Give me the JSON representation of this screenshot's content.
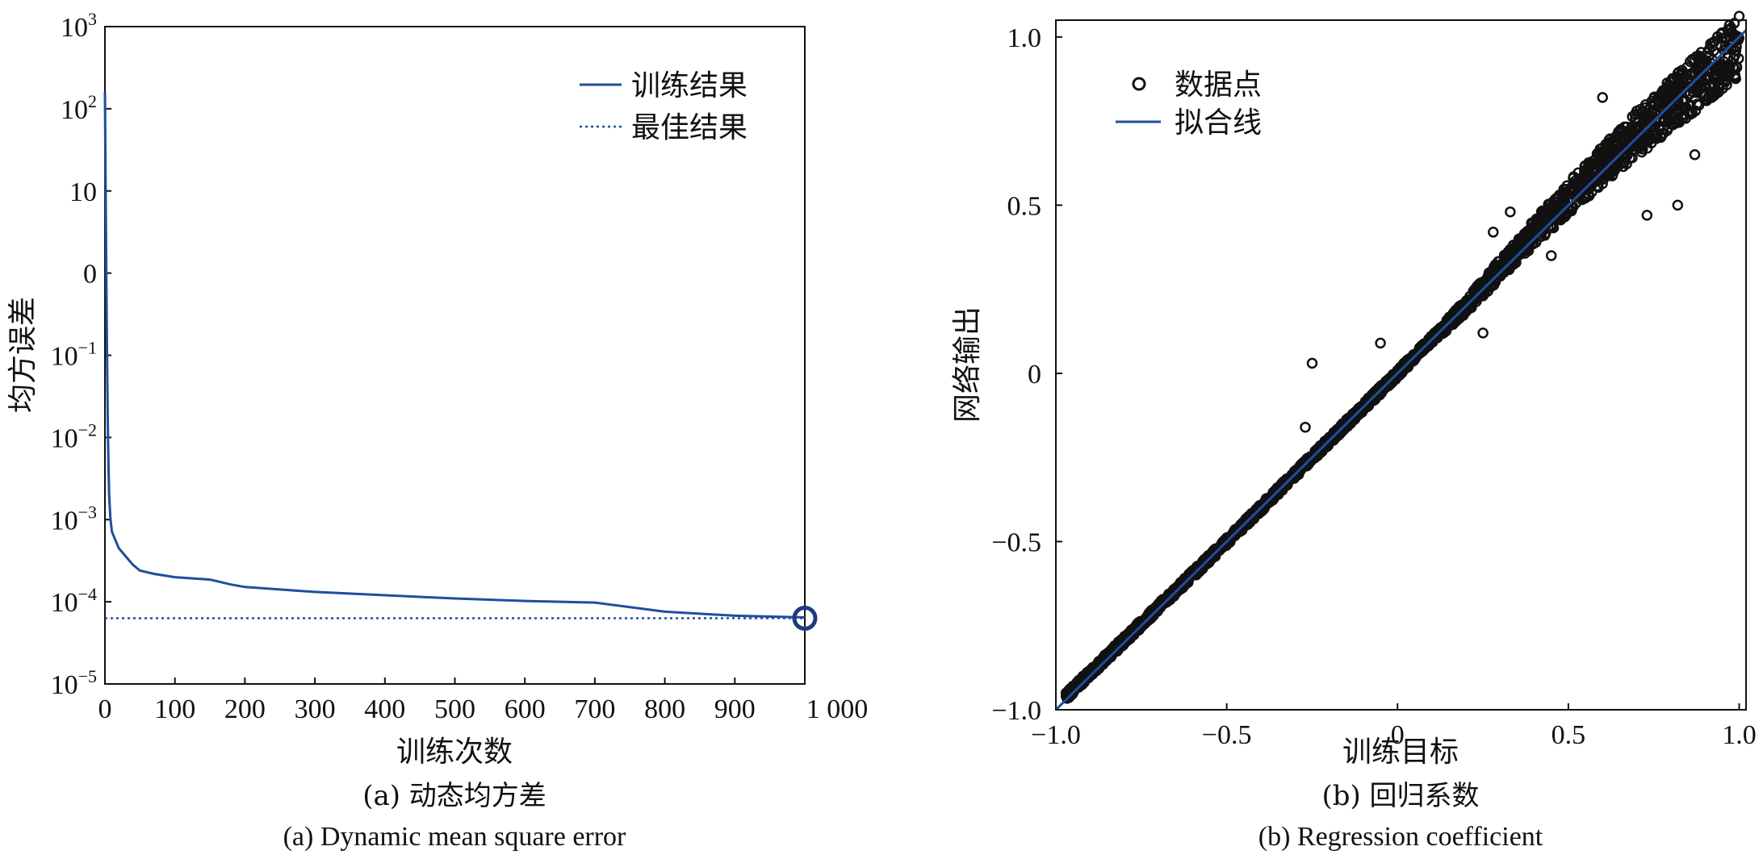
{
  "chart_data": [
    {
      "type": "line",
      "panel": "a",
      "xlabel": "训练次数",
      "ylabel": "均方误差",
      "caption_cn": "(a) 动态均方差",
      "caption_en": "(a) Dynamic mean square error",
      "xlim": [
        0,
        1000
      ],
      "yscale": "log",
      "ylim_exp": [
        -5,
        3
      ],
      "x_ticks": [
        0,
        100,
        200,
        300,
        400,
        500,
        600,
        700,
        800,
        900,
        1000
      ],
      "x_tick_labels": [
        "0",
        "100",
        "200",
        "300",
        "400",
        "500",
        "600",
        "700",
        "800",
        "900",
        "1 000"
      ],
      "y_ticks": [
        {
          "exp": 3,
          "base": "10",
          "sup": "3"
        },
        {
          "exp": 2,
          "base": "10",
          "sup": "2"
        },
        {
          "exp": 1,
          "base": "10",
          "sup": ""
        },
        {
          "exp": 0,
          "base": "0",
          "sup": ""
        },
        {
          "exp": -1,
          "base": "10",
          "sup": "−1"
        },
        {
          "exp": -2,
          "base": "10",
          "sup": "−2"
        },
        {
          "exp": -3,
          "base": "10",
          "sup": "−3"
        },
        {
          "exp": -4,
          "base": "10",
          "sup": "−4"
        },
        {
          "exp": -5,
          "base": "10",
          "sup": "−5"
        }
      ],
      "legend": {
        "placement": "top-right",
        "entries": [
          "训练结果",
          "最佳结果"
        ]
      },
      "series": [
        {
          "name": "训练结果",
          "style": "solid",
          "color": "#1f4e9c",
          "x": [
            0,
            1,
            2,
            3,
            4,
            5,
            6,
            8,
            10,
            15,
            20,
            30,
            40,
            50,
            70,
            100,
            150,
            180,
            200,
            300,
            400,
            500,
            600,
            700,
            800,
            900,
            1000
          ],
          "log10_y": [
            2.2,
            1.0,
            0.0,
            -1.0,
            -1.8,
            -2.3,
            -2.7,
            -3.0,
            -3.15,
            -3.25,
            -3.35,
            -3.45,
            -3.55,
            -3.62,
            -3.66,
            -3.7,
            -3.73,
            -3.79,
            -3.82,
            -3.88,
            -3.92,
            -3.96,
            -3.99,
            -4.01,
            -4.12,
            -4.17,
            -4.19
          ]
        },
        {
          "name": "最佳结果",
          "style": "dotted",
          "color": "#1f4e9c",
          "x": [
            0,
            1000
          ],
          "log10_y": [
            -4.2,
            -4.2
          ]
        }
      ],
      "marker": {
        "x": 1000,
        "log10_y": -4.2,
        "shape": "circle"
      }
    },
    {
      "type": "scatter",
      "panel": "b",
      "xlabel": "训练目标",
      "ylabel": "网络输出",
      "caption_cn": "(b) 回归系数",
      "caption_en": "(b) Regression coefficient",
      "xlim": [
        -1.0,
        1.02
      ],
      "ylim": [
        -1.0,
        1.05
      ],
      "x_ticks": [
        -1.0,
        -0.5,
        0,
        0.5,
        1.0
      ],
      "x_tick_labels": [
        "−1.0",
        "−0.5",
        "0",
        "0.5",
        "1.0"
      ],
      "y_ticks": [
        -1.0,
        -0.5,
        0,
        0.5,
        1.0
      ],
      "y_tick_labels": [
        "−1.0",
        "−0.5",
        "0",
        "0.5",
        "1.0"
      ],
      "legend": {
        "placement": "top-left",
        "entries": [
          "数据点",
          "拟合线"
        ]
      },
      "fit_line": {
        "name": "拟合线",
        "slope": 1.0,
        "intercept": 0.0,
        "color": "#1f4e9c"
      },
      "points_description_values": {
        "name": "数据点",
        "trend_x": [
          -0.97,
          -0.5,
          0.0,
          0.2,
          0.4,
          0.6,
          0.8,
          1.0
        ],
        "trend_y": [
          -0.96,
          -0.5,
          0.0,
          0.2,
          0.42,
          0.62,
          0.8,
          0.97
        ],
        "outliers": [
          [
            -0.25,
            0.03
          ],
          [
            -0.27,
            -0.16
          ],
          [
            -0.05,
            0.09
          ],
          [
            0.25,
            0.12
          ],
          [
            0.28,
            0.42
          ],
          [
            0.33,
            0.48
          ],
          [
            0.45,
            0.35
          ],
          [
            0.6,
            0.82
          ],
          [
            0.7,
            0.78
          ],
          [
            0.73,
            0.47
          ],
          [
            0.87,
            0.65
          ],
          [
            0.82,
            0.5
          ],
          [
            0.95,
            0.9
          ]
        ]
      }
    }
  ]
}
